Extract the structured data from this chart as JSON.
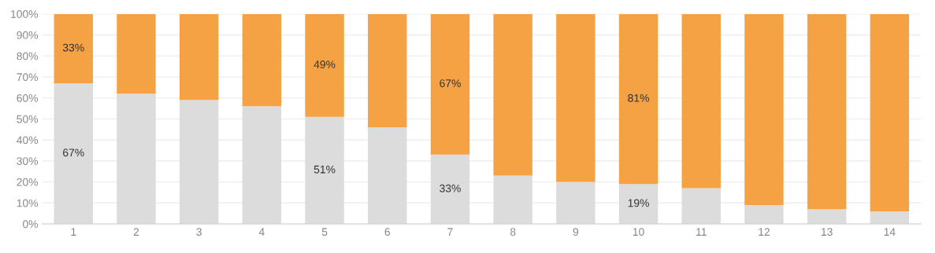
{
  "chart_data": {
    "type": "bar",
    "stacked": true,
    "categories": [
      "1",
      "2",
      "3",
      "4",
      "5",
      "6",
      "7",
      "8",
      "9",
      "10",
      "11",
      "12",
      "13",
      "14"
    ],
    "series": [
      {
        "color": "#dcdcdc",
        "values": [
          67,
          62,
          59,
          56,
          51,
          46,
          33,
          23,
          20,
          19,
          17,
          9,
          7,
          6
        ],
        "value_labels": [
          "67%",
          null,
          null,
          null,
          "51%",
          null,
          "33%",
          null,
          null,
          "19%",
          null,
          null,
          null,
          null
        ]
      },
      {
        "color": "#f4a244",
        "values": [
          33,
          38,
          41,
          44,
          49,
          54,
          67,
          77,
          80,
          81,
          83,
          91,
          93,
          94
        ],
        "value_labels": [
          "33%",
          null,
          null,
          null,
          "49%",
          null,
          "67%",
          null,
          null,
          "81%",
          null,
          null,
          null,
          null
        ]
      }
    ],
    "ylim": [
      0,
      100
    ],
    "yticks": [
      {
        "value": 0,
        "label": "0%"
      },
      {
        "value": 10,
        "label": "10%"
      },
      {
        "value": 20,
        "label": "20%"
      },
      {
        "value": 30,
        "label": "30%"
      },
      {
        "value": 40,
        "label": "40%"
      },
      {
        "value": 50,
        "label": "50%"
      },
      {
        "value": 60,
        "label": "60%"
      },
      {
        "value": 70,
        "label": "70%"
      },
      {
        "value": 80,
        "label": "80%"
      },
      {
        "value": 90,
        "label": "90%"
      },
      {
        "value": 100,
        "label": "100%"
      }
    ],
    "grid": "y"
  }
}
